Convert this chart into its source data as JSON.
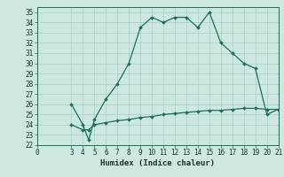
{
  "xlabel": "Humidex (Indice chaleur)",
  "bg_color": "#cce8e0",
  "grid_color": "#aacccc",
  "line_color": "#1a7060",
  "line1_x": [
    3,
    4,
    4.5,
    5,
    6,
    7,
    8,
    9,
    10,
    11,
    12,
    13,
    14,
    15,
    16,
    17,
    18,
    19,
    20,
    21
  ],
  "line1_y": [
    26,
    24,
    22.5,
    24.5,
    26.5,
    28,
    30,
    33.5,
    34.5,
    34,
    34.5,
    34.5,
    33.5,
    35,
    32,
    31,
    30,
    29.5,
    25,
    25.5
  ],
  "line2_x": [
    3,
    4,
    4.5,
    5,
    6,
    7,
    8,
    9,
    10,
    11,
    12,
    13,
    14,
    15,
    16,
    17,
    18,
    19,
    20,
    21
  ],
  "line2_y": [
    24,
    23.5,
    23.5,
    24.0,
    24.2,
    24.4,
    24.5,
    24.7,
    24.8,
    25.0,
    25.1,
    25.2,
    25.3,
    25.4,
    25.4,
    25.5,
    25.6,
    25.6,
    25.5,
    25.5
  ],
  "xlim": [
    0,
    21
  ],
  "ylim": [
    22,
    35.5
  ],
  "xticks": [
    0,
    3,
    4,
    5,
    6,
    7,
    8,
    9,
    10,
    11,
    12,
    13,
    14,
    15,
    16,
    17,
    18,
    19,
    20,
    21
  ],
  "yticks": [
    22,
    23,
    24,
    25,
    26,
    27,
    28,
    29,
    30,
    31,
    32,
    33,
    34,
    35
  ],
  "markersize": 2.0,
  "linewidth": 0.9,
  "fontsize_tick": 5.5,
  "fontsize_label": 6.5
}
